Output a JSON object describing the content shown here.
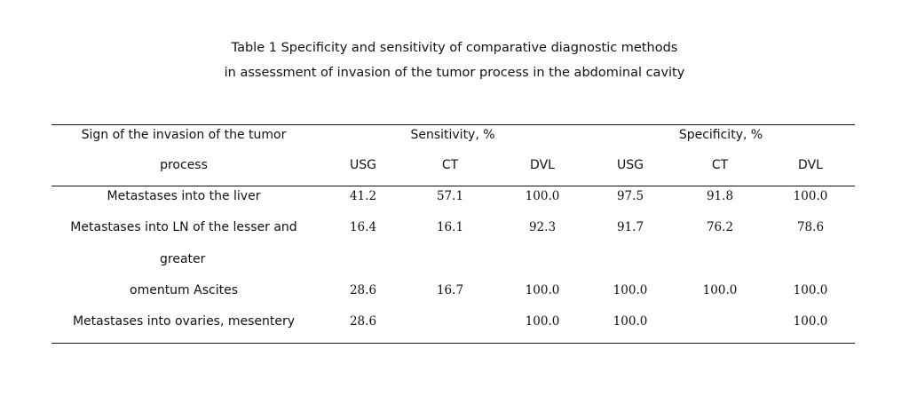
{
  "caption": {
    "line1": "Table 1 Specificity and sensitivity of comparative diagnostic methods",
    "line2": "in assessment of invasion of the tumor process in the abdominal cavity"
  },
  "header": {
    "sign_line1": "Sign of the invasion of the tumor",
    "sign_line2": "process",
    "sensitivity": "Sensitivity, %",
    "specificity": "Specificity, %",
    "sub": [
      "USG",
      "CT",
      "DVL",
      "USG",
      "CT",
      "DVL"
    ]
  },
  "rows": [
    {
      "sign": "Metastases into the liver",
      "values": [
        "41.2",
        "57.1",
        "100.0",
        "97.5",
        "91.8",
        "100.0"
      ]
    },
    {
      "sign": "Metastases into LN of the lesser and",
      "values": [
        "16.4",
        "16.1",
        "92.3",
        "91.7",
        "76.2",
        "78.6"
      ]
    },
    {
      "sign": "greater",
      "values": [
        "",
        "",
        "",
        "",
        "",
        ""
      ]
    },
    {
      "sign": "omentum Ascites",
      "values": [
        "28.6",
        "16.7",
        "100.0",
        "100.0",
        "100.0",
        "100.0"
      ]
    },
    {
      "sign": "Metastases into ovaries, mesentery",
      "values": [
        "28.6",
        "",
        "100.0",
        "100.0",
        "",
        "100.0"
      ]
    }
  ]
}
